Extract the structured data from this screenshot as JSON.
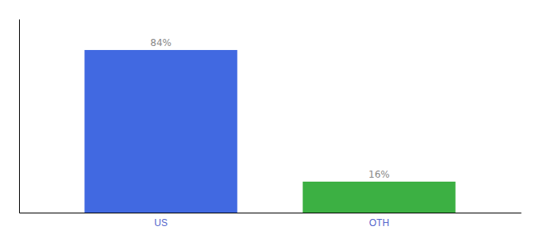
{
  "chart_data": {
    "type": "bar",
    "categories": [
      "US",
      "OTH"
    ],
    "values": [
      84,
      16
    ],
    "value_labels": [
      "84%",
      "16%"
    ],
    "colors": [
      "#4169E1",
      "#3CB043"
    ],
    "ylim": [
      0,
      100
    ],
    "data_labels": true,
    "tick_labels": "x",
    "grid": false
  }
}
